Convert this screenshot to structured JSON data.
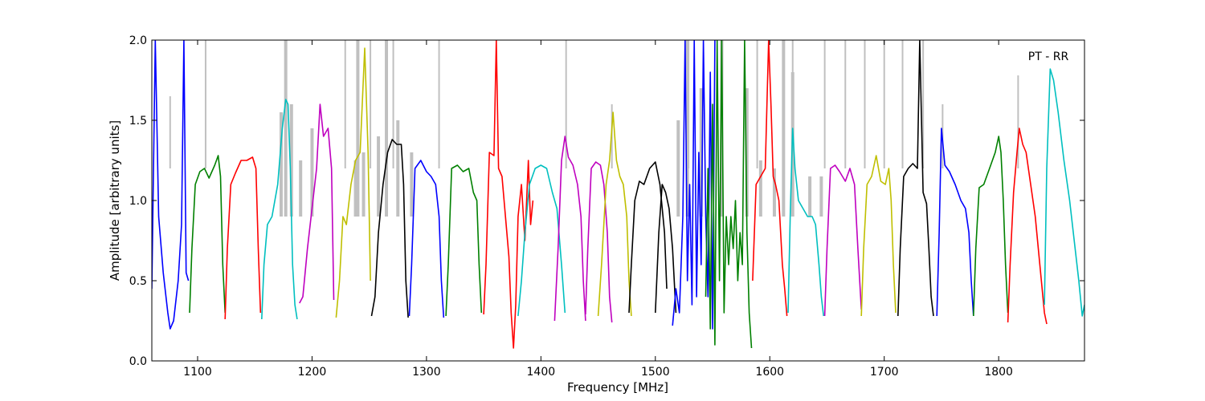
{
  "chart_data": {
    "type": "line",
    "title": "",
    "annotation": "PT - RR",
    "xlabel": "Frequency [MHz]",
    "ylabel": "Amplitude [arbitrary units]",
    "xlim": [
      1060,
      1875
    ],
    "ylim": [
      0.0,
      2.0
    ],
    "xticks": [
      1100,
      1200,
      1300,
      1400,
      1500,
      1600,
      1700,
      1800
    ],
    "yticks": [
      0.0,
      0.5,
      1.0,
      1.5,
      2.0
    ],
    "xtick_labels": [
      "1100",
      "1200",
      "1300",
      "1400",
      "1500",
      "1600",
      "1700",
      "1800"
    ],
    "ytick_labels": [
      "0.0",
      "0.5",
      "1.0",
      "1.5",
      "2.0"
    ],
    "grid": false,
    "background_color": "#c0c0c0",
    "band_colors": [
      "#0000ff",
      "#008000",
      "#ff0000",
      "#00bfbf",
      "#bf00bf",
      "#bfbf00",
      "#000000"
    ],
    "bands": [
      {
        "color": "#0000ff",
        "x": [
          1060,
          1063,
          1066,
          1070,
          1074,
          1076,
          1079,
          1083,
          1086,
          1088,
          1090,
          1092
        ],
        "y": [
          0.45,
          2.0,
          0.9,
          0.55,
          0.3,
          0.2,
          0.25,
          0.5,
          0.85,
          2.0,
          0.55,
          0.5
        ]
      },
      {
        "color": "#008000",
        "x": [
          1093,
          1095,
          1098,
          1102,
          1106,
          1110,
          1115,
          1118,
          1120,
          1122,
          1124
        ],
        "y": [
          0.3,
          0.7,
          1.1,
          1.18,
          1.2,
          1.14,
          1.22,
          1.28,
          1.15,
          0.6,
          0.3
        ]
      },
      {
        "color": "#ff0000",
        "x": [
          1124,
          1126,
          1129,
          1133,
          1138,
          1143,
          1148,
          1151,
          1153,
          1155
        ],
        "y": [
          0.26,
          0.7,
          1.1,
          1.17,
          1.25,
          1.25,
          1.27,
          1.2,
          0.7,
          0.3
        ]
      },
      {
        "color": "#00bfbf",
        "x": [
          1156,
          1158,
          1161,
          1165,
          1170,
          1174,
          1177,
          1179,
          1181,
          1183,
          1185,
          1187
        ],
        "y": [
          0.26,
          0.6,
          0.85,
          0.9,
          1.1,
          1.45,
          1.63,
          1.6,
          1.2,
          0.6,
          0.35,
          0.26
        ]
      },
      {
        "color": "#bf00bf",
        "x": [
          1189,
          1192,
          1196,
          1200,
          1204,
          1207,
          1210,
          1214,
          1217,
          1219
        ],
        "y": [
          0.36,
          0.4,
          0.7,
          0.95,
          1.2,
          1.6,
          1.4,
          1.45,
          1.2,
          0.38
        ]
      },
      {
        "color": "#bfbf00",
        "x": [
          1221,
          1224,
          1227,
          1230,
          1234,
          1238,
          1242,
          1246,
          1249,
          1251
        ],
        "y": [
          0.27,
          0.5,
          0.9,
          0.85,
          1.1,
          1.25,
          1.3,
          1.95,
          1.3,
          0.5
        ]
      },
      {
        "color": "#000000",
        "x": [
          1252,
          1255,
          1258,
          1262,
          1266,
          1270,
          1274,
          1278,
          1280,
          1282,
          1284
        ],
        "y": [
          0.28,
          0.4,
          0.8,
          1.1,
          1.3,
          1.38,
          1.35,
          1.35,
          1.1,
          0.5,
          0.27
        ]
      },
      {
        "color": "#0000ff",
        "x": [
          1285,
          1287,
          1290,
          1295,
          1300,
          1304,
          1308,
          1311,
          1313,
          1315
        ],
        "y": [
          0.28,
          0.6,
          1.2,
          1.25,
          1.18,
          1.15,
          1.1,
          0.9,
          0.5,
          0.27
        ]
      },
      {
        "color": "#008000",
        "x": [
          1317,
          1319,
          1322,
          1327,
          1332,
          1337,
          1341,
          1344,
          1346,
          1348
        ],
        "y": [
          0.28,
          0.6,
          1.2,
          1.22,
          1.18,
          1.2,
          1.05,
          1.0,
          0.6,
          0.3
        ]
      },
      {
        "color": "#ff0000",
        "x": [
          1350,
          1352,
          1355,
          1359,
          1361,
          1363,
          1366,
          1369,
          1372,
          1374,
          1376,
          1378,
          1380,
          1383,
          1386,
          1389,
          1391,
          1393
        ],
        "y": [
          0.29,
          0.6,
          1.3,
          1.28,
          2.0,
          1.2,
          1.15,
          0.9,
          0.65,
          0.3,
          0.08,
          0.35,
          0.9,
          1.1,
          0.75,
          1.25,
          0.85,
          1.0
        ]
      },
      {
        "color": "#00bfbf",
        "x": [
          1380,
          1383,
          1386,
          1390,
          1395,
          1400,
          1405,
          1410,
          1414,
          1418,
          1421
        ],
        "y": [
          0.28,
          0.5,
          0.8,
          1.1,
          1.2,
          1.22,
          1.2,
          1.05,
          0.95,
          0.6,
          0.3
        ]
      },
      {
        "color": "#bf00bf",
        "x": [
          1412,
          1415,
          1418,
          1421,
          1424,
          1428,
          1432,
          1435,
          1437,
          1439
        ],
        "y": [
          0.25,
          0.7,
          1.25,
          1.4,
          1.27,
          1.22,
          1.1,
          0.9,
          0.5,
          0.25
        ]
      },
      {
        "color": "#bf00bf",
        "x": [
          1439,
          1441,
          1444,
          1448,
          1452,
          1455,
          1458,
          1460,
          1462
        ],
        "y": [
          0.29,
          0.7,
          1.2,
          1.24,
          1.22,
          1.1,
          0.8,
          0.4,
          0.24
        ]
      },
      {
        "color": "#bfbf00",
        "x": [
          1450,
          1453,
          1457,
          1460,
          1463,
          1466,
          1469,
          1472,
          1475,
          1477,
          1479
        ],
        "y": [
          0.28,
          0.6,
          1.1,
          1.25,
          1.55,
          1.25,
          1.15,
          1.1,
          0.9,
          0.5,
          0.28
        ]
      },
      {
        "color": "#000000",
        "x": [
          1477,
          1479,
          1482,
          1486,
          1490,
          1495,
          1500,
          1504,
          1508,
          1510
        ],
        "y": [
          0.3,
          0.6,
          1.0,
          1.12,
          1.1,
          1.2,
          1.24,
          1.1,
          0.8,
          0.45
        ]
      },
      {
        "color": "#000000",
        "x": [
          1500,
          1503,
          1506,
          1509,
          1512,
          1515,
          1518
        ],
        "y": [
          0.3,
          0.8,
          1.1,
          1.05,
          0.95,
          0.7,
          0.3
        ]
      },
      {
        "color": "#0000ff",
        "x": [
          1515,
          1518,
          1521,
          1524,
          1526,
          1528,
          1530,
          1532,
          1534,
          1536,
          1538,
          1540,
          1542,
          1544,
          1546,
          1548,
          1550,
          1552
        ],
        "y": [
          0.22,
          0.45,
          0.3,
          0.9,
          2.0,
          0.5,
          1.1,
          0.35,
          2.0,
          0.4,
          1.3,
          0.6,
          2.0,
          0.9,
          0.4,
          1.8,
          0.2,
          2.0
        ]
      },
      {
        "color": "#008000",
        "x": [
          1544,
          1546,
          1548,
          1550,
          1552,
          1554,
          1556,
          1558,
          1560,
          1562,
          1564,
          1566,
          1568,
          1570,
          1572,
          1574,
          1576,
          1578,
          1580,
          1582,
          1584
        ],
        "y": [
          0.4,
          1.2,
          0.2,
          1.6,
          0.1,
          2.0,
          0.5,
          2.0,
          0.3,
          0.9,
          0.6,
          0.9,
          0.7,
          1.0,
          0.5,
          0.8,
          0.6,
          2.0,
          0.8,
          0.3,
          0.08
        ]
      },
      {
        "color": "#ff0000",
        "x": [
          1585,
          1588,
          1592,
          1596,
          1599,
          1601,
          1603,
          1605,
          1608,
          1611,
          1613,
          1615
        ],
        "y": [
          0.5,
          1.1,
          1.15,
          1.2,
          2.0,
          1.6,
          1.15,
          1.1,
          1.0,
          0.6,
          0.45,
          0.28
        ]
      },
      {
        "color": "#00bfbf",
        "x": [
          1616,
          1618,
          1620,
          1622,
          1625,
          1629,
          1633,
          1637,
          1640,
          1643,
          1645,
          1647
        ],
        "y": [
          0.3,
          0.95,
          1.45,
          1.2,
          1.0,
          0.95,
          0.9,
          0.9,
          0.85,
          0.6,
          0.4,
          0.28
        ]
      },
      {
        "color": "#bf00bf",
        "x": [
          1648,
          1650,
          1653,
          1657,
          1661,
          1666,
          1670,
          1674,
          1677,
          1680
        ],
        "y": [
          0.28,
          0.7,
          1.2,
          1.22,
          1.18,
          1.12,
          1.2,
          1.1,
          0.7,
          0.32
        ]
      },
      {
        "color": "#bfbf00",
        "x": [
          1680,
          1682,
          1685,
          1689,
          1693,
          1697,
          1701,
          1704,
          1706,
          1708,
          1710
        ],
        "y": [
          0.28,
          0.7,
          1.1,
          1.15,
          1.28,
          1.12,
          1.1,
          1.2,
          1.0,
          0.6,
          0.3
        ]
      },
      {
        "color": "#000000",
        "x": [
          1712,
          1714,
          1717,
          1721,
          1725,
          1729,
          1731,
          1734,
          1737,
          1739,
          1741,
          1743
        ],
        "y": [
          0.28,
          0.7,
          1.15,
          1.2,
          1.23,
          1.2,
          2.0,
          1.05,
          0.98,
          0.7,
          0.4,
          0.28
        ]
      },
      {
        "color": "#0000ff",
        "x": [
          1746,
          1748,
          1750,
          1753,
          1757,
          1762,
          1767,
          1771,
          1774,
          1776,
          1778
        ],
        "y": [
          0.28,
          0.8,
          1.45,
          1.22,
          1.18,
          1.1,
          1.0,
          0.95,
          0.8,
          0.5,
          0.28
        ]
      },
      {
        "color": "#008000",
        "x": [
          1778,
          1780,
          1783,
          1787,
          1792,
          1797,
          1800,
          1802,
          1804,
          1806,
          1808
        ],
        "y": [
          0.28,
          0.7,
          1.08,
          1.1,
          1.2,
          1.3,
          1.4,
          1.3,
          1.0,
          0.6,
          0.3
        ]
      },
      {
        "color": "#ff0000",
        "x": [
          1808,
          1810,
          1813,
          1816,
          1818,
          1821,
          1824,
          1828,
          1832,
          1836,
          1840,
          1842
        ],
        "y": [
          0.24,
          0.6,
          1.05,
          1.3,
          1.45,
          1.35,
          1.3,
          1.1,
          0.9,
          0.6,
          0.3,
          0.23
        ]
      },
      {
        "color": "#00bfbf",
        "x": [
          1840,
          1842,
          1845,
          1848,
          1852,
          1857,
          1862,
          1866,
          1870,
          1873,
          1875
        ],
        "y": [
          0.35,
          1.2,
          1.82,
          1.75,
          1.55,
          1.25,
          1.0,
          0.75,
          0.5,
          0.28,
          0.35
        ]
      }
    ],
    "spikes": [
      {
        "x": 1076,
        "y": 1.65
      },
      {
        "x": 1107,
        "y": 2.0
      },
      {
        "x": 1229,
        "y": 2.0
      },
      {
        "x": 1251,
        "y": 2.0
      },
      {
        "x": 1271,
        "y": 2.0
      },
      {
        "x": 1311,
        "y": 2.0
      },
      {
        "x": 1422,
        "y": 2.0
      },
      {
        "x": 1462,
        "y": 1.6
      },
      {
        "x": 1529,
        "y": 2.0
      },
      {
        "x": 1589,
        "y": 2.0
      },
      {
        "x": 1620,
        "y": 2.0
      },
      {
        "x": 1648,
        "y": 2.0
      },
      {
        "x": 1666,
        "y": 2.0
      },
      {
        "x": 1683,
        "y": 2.0
      },
      {
        "x": 1700,
        "y": 2.0
      },
      {
        "x": 1716,
        "y": 2.0
      },
      {
        "x": 1734,
        "y": 2.0
      },
      {
        "x": 1751,
        "y": 1.6
      },
      {
        "x": 1817,
        "y": 1.78
      }
    ],
    "envelope": [
      {
        "x": 1173,
        "y": 1.55
      },
      {
        "x": 1177,
        "y": 2.0
      },
      {
        "x": 1182,
        "y": 1.6
      },
      {
        "x": 1190,
        "y": 1.25
      },
      {
        "x": 1200,
        "y": 1.45
      },
      {
        "x": 1238,
        "y": 1.25
      },
      {
        "x": 1240,
        "y": 2.0
      },
      {
        "x": 1245,
        "y": 1.3
      },
      {
        "x": 1258,
        "y": 1.4
      },
      {
        "x": 1265,
        "y": 2.0
      },
      {
        "x": 1275,
        "y": 1.5
      },
      {
        "x": 1287,
        "y": 1.3
      },
      {
        "x": 1520,
        "y": 1.5
      },
      {
        "x": 1528,
        "y": 2.0
      },
      {
        "x": 1540,
        "y": 1.7
      },
      {
        "x": 1558,
        "y": 2.0
      },
      {
        "x": 1580,
        "y": 1.7
      },
      {
        "x": 1592,
        "y": 1.25
      },
      {
        "x": 1604,
        "y": 1.2
      },
      {
        "x": 1612,
        "y": 2.0
      },
      {
        "x": 1620,
        "y": 1.8
      },
      {
        "x": 1635,
        "y": 1.15
      },
      {
        "x": 1645,
        "y": 1.15
      }
    ]
  }
}
